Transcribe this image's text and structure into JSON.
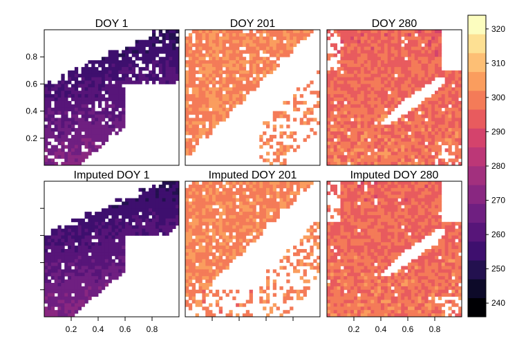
{
  "chart_data": {
    "type": "heatmap",
    "layout": "2x3 panel grid",
    "panels": [
      {
        "title": "DOY 1",
        "row": 1,
        "col": 1,
        "palette_range": [
          248,
          272
        ]
      },
      {
        "title": "DOY 201",
        "row": 1,
        "col": 2,
        "palette_range": [
          296,
          306
        ]
      },
      {
        "title": "DOY 280",
        "row": 1,
        "col": 3,
        "palette_range": [
          293,
          306
        ]
      },
      {
        "title": "Imputed DOY 1",
        "row": 2,
        "col": 1,
        "palette_range": [
          248,
          272
        ]
      },
      {
        "title": "Imputed DOY 201",
        "row": 2,
        "col": 2,
        "palette_range": [
          296,
          306
        ]
      },
      {
        "title": "Imputed DOY 280",
        "row": 2,
        "col": 3,
        "palette_range": [
          293,
          306
        ]
      }
    ],
    "xlim": [
      0,
      1
    ],
    "ylim": [
      0,
      1
    ],
    "x_ticks": [
      0.2,
      0.4,
      0.6,
      0.8
    ],
    "y_ticks": [
      0.2,
      0.4,
      0.6,
      0.8
    ],
    "x_tick_labels": [
      "0.2",
      "0.4",
      "0.6",
      "0.8"
    ],
    "y_tick_labels": [
      "0.2",
      "0.4",
      "0.6",
      "0.8"
    ],
    "colorbar": {
      "range": [
        236,
        324
      ],
      "ticks": [
        240,
        250,
        260,
        270,
        280,
        290,
        300,
        310,
        320
      ],
      "tick_labels": [
        "240",
        "250",
        "260",
        "270",
        "280",
        "290",
        "300",
        "310",
        "320"
      ],
      "colors": [
        "#000004",
        "#0d0a29",
        "#23114f",
        "#3e0f6e",
        "#571579",
        "#6f1f81",
        "#892781",
        "#a2307e",
        "#bc3777",
        "#d4436c",
        "#e85b5e",
        "#f47b58",
        "#fa9d5e",
        "#fdbf75",
        "#fde093",
        "#fcfdbf"
      ]
    }
  }
}
